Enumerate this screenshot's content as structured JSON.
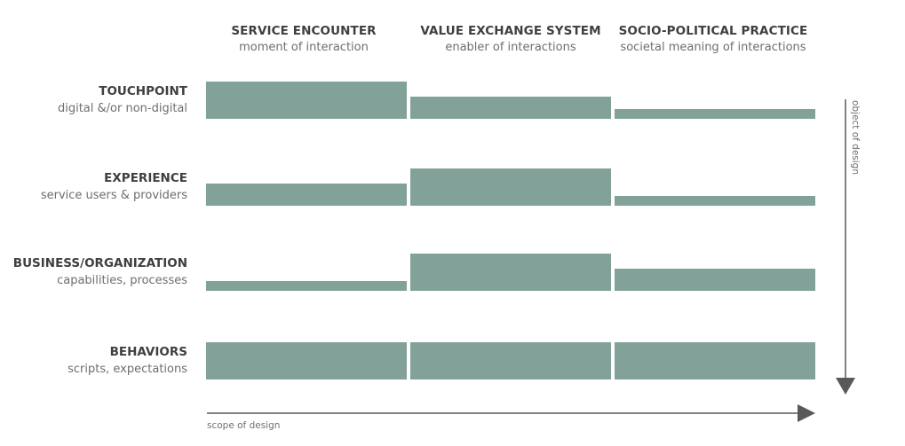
{
  "columns": [
    {
      "title": "SERVICE ENCOUNTER",
      "subtitle": "moment of interaction"
    },
    {
      "title": "VALUE EXCHANGE SYSTEM",
      "subtitle": "enabler of interactions"
    },
    {
      "title": "SOCIO-POLITICAL PRACTICE",
      "subtitle": "societal meaning of interactions"
    }
  ],
  "rows": [
    {
      "title": "TOUCHPOINT",
      "subtitle": "digital &/or non-digital",
      "levels": [
        1.0,
        0.6,
        0.25
      ]
    },
    {
      "title": "EXPERIENCE",
      "subtitle": "service users & providers",
      "levels": [
        0.6,
        1.0,
        0.25
      ]
    },
    {
      "title": "BUSINESS/ORGANIZATION",
      "subtitle": "capabilities, processes",
      "levels": [
        0.25,
        1.0,
        0.6
      ]
    },
    {
      "title": "BEHAVIORS",
      "subtitle": "scripts, expectations",
      "levels": [
        1.0,
        1.0,
        1.0
      ]
    }
  ],
  "axes": {
    "x_label": "scope of design",
    "y_label": "object of design"
  },
  "colors": {
    "bar": "#82a199",
    "arrow": "#595959",
    "title_text": "#3f3f3f",
    "sub_text": "#6e6e6e"
  }
}
